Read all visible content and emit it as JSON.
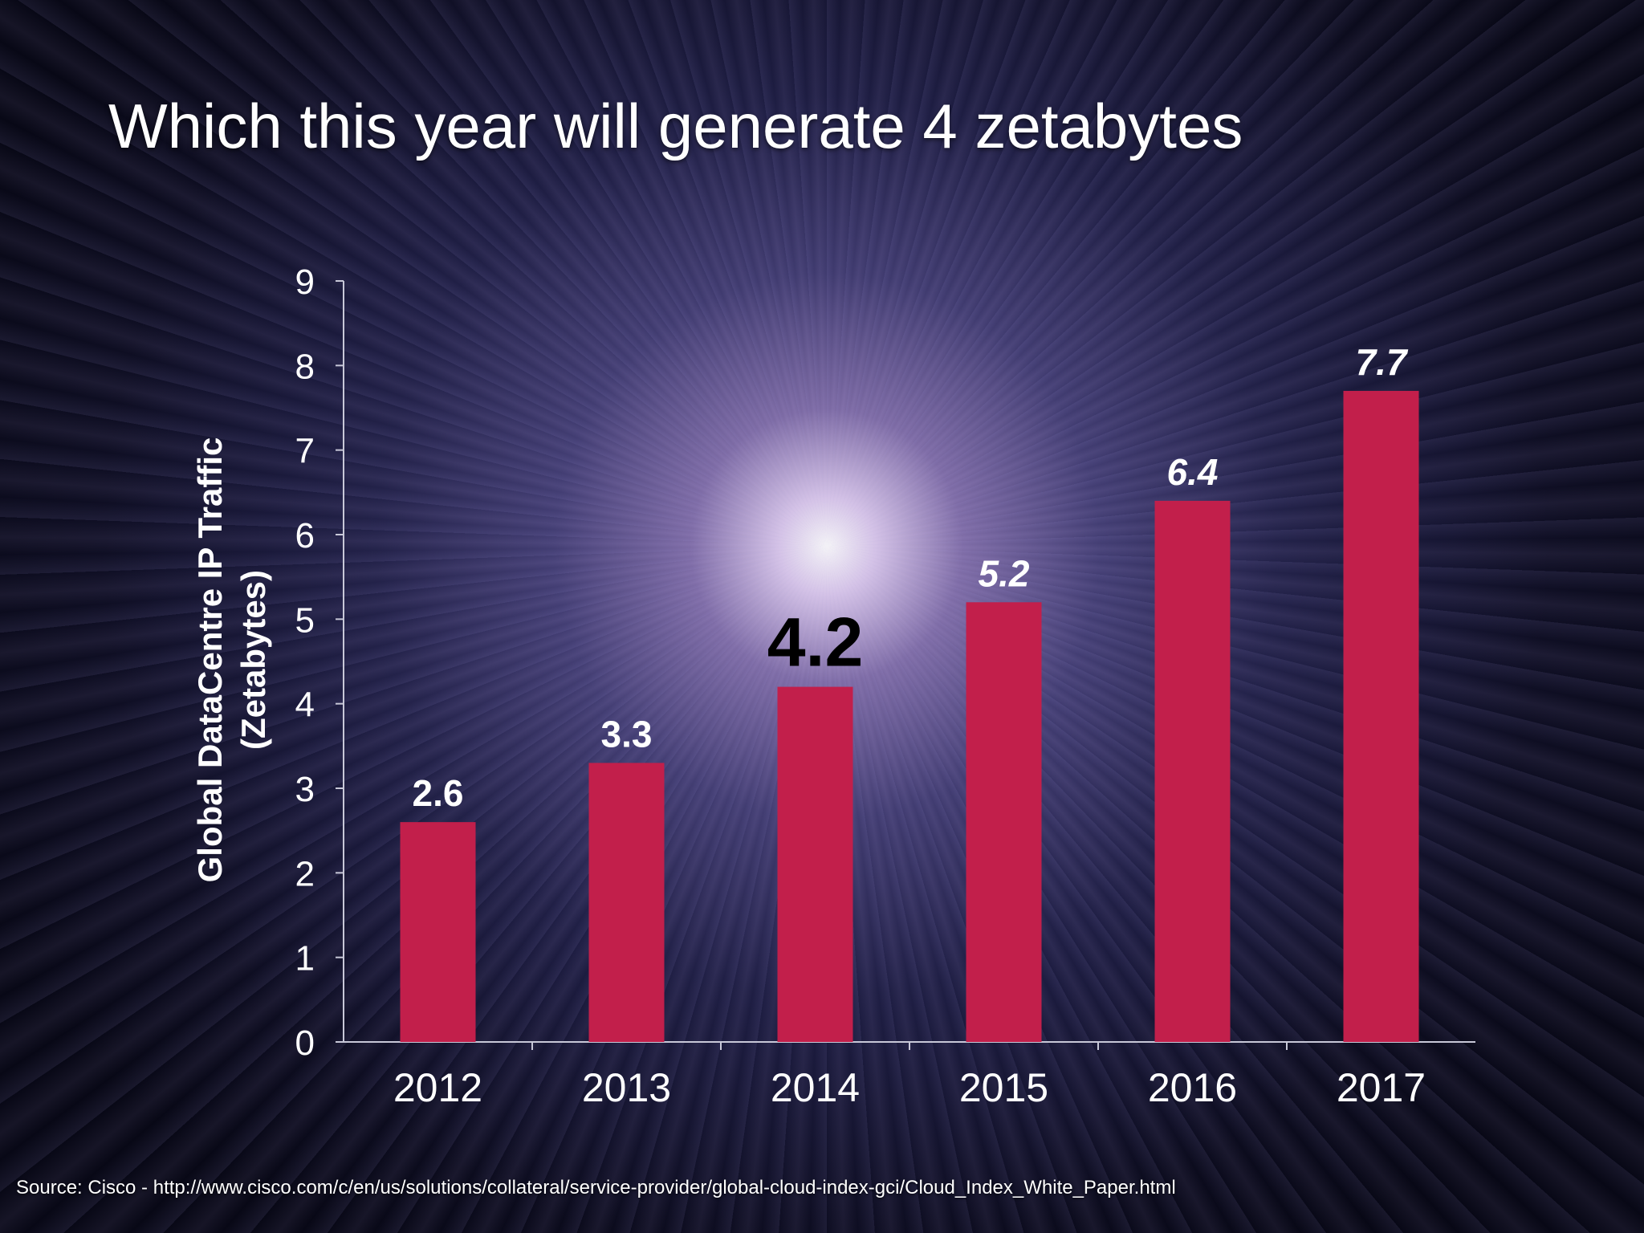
{
  "slide": {
    "title": "Which this year will generate 4 zetabytes",
    "source": "Source: Cisco - http://www.cisco.com/c/en/us/solutions/collateral/service-provider/global-cloud-index-gci/Cloud_Index_White_Paper.html"
  },
  "colors": {
    "bar": "#c21f4b",
    "axis": "#c8c8d8",
    "highlight_label": "#000000"
  },
  "chart_data": {
    "type": "bar",
    "categories": [
      "2012",
      "2013",
      "2014",
      "2015",
      "2016",
      "2017"
    ],
    "values": [
      2.6,
      3.3,
      4.2,
      5.2,
      6.4,
      7.7
    ],
    "value_labels": [
      "2.6",
      "3.3",
      "4.2",
      "5.2",
      "6.4",
      "7.7"
    ],
    "highlight_index": 2,
    "italic_indices": [
      3,
      4,
      5
    ],
    "ylabel_line1": "Global DataCentre IP Traffic",
    "ylabel_line2": "(Zetabytes)",
    "ylim": [
      0,
      9
    ],
    "yticks": [
      0,
      1,
      2,
      3,
      4,
      5,
      6,
      7,
      8,
      9
    ],
    "grid": false,
    "legend": "none"
  }
}
